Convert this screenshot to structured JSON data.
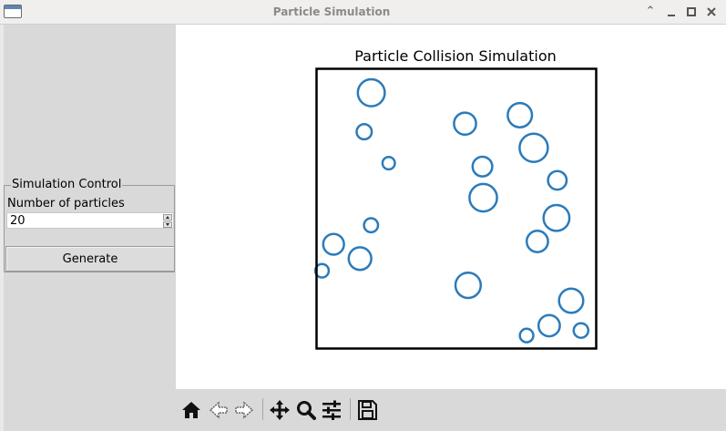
{
  "window": {
    "title": "Particle Simulation",
    "icons": [
      "app-window-icon",
      "chevron-up-icon",
      "minimize-icon",
      "maximize-icon",
      "close-icon"
    ]
  },
  "controls": {
    "group_title": "Simulation Control",
    "particles_label": "Number of particles",
    "particles_value": "20",
    "generate_label": "Generate"
  },
  "toolbar": {
    "icons": [
      "home-icon",
      "back-arrow-icon",
      "forward-arrow-icon",
      "pan-icon",
      "zoom-icon",
      "configure-subplots-icon",
      "save-icon"
    ]
  },
  "colors": {
    "particle": "#2b7bba",
    "frame": "#000000",
    "panel": "#d9d9d9"
  },
  "chart_data": {
    "type": "scatter",
    "title": "Particle Collision Simulation",
    "xlim": [
      0,
      1
    ],
    "ylim": [
      0,
      1
    ],
    "grid": false,
    "axes_visible": false,
    "points": [
      {
        "x": 0.196,
        "y": 0.913,
        "r": 0.048
      },
      {
        "x": 0.171,
        "y": 0.774,
        "r": 0.027
      },
      {
        "x": 0.258,
        "y": 0.662,
        "r": 0.022
      },
      {
        "x": 0.529,
        "y": 0.803,
        "r": 0.039
      },
      {
        "x": 0.724,
        "y": 0.833,
        "r": 0.043
      },
      {
        "x": 0.773,
        "y": 0.717,
        "r": 0.05
      },
      {
        "x": 0.591,
        "y": 0.65,
        "r": 0.035
      },
      {
        "x": 0.857,
        "y": 0.601,
        "r": 0.033
      },
      {
        "x": 0.594,
        "y": 0.539,
        "r": 0.049
      },
      {
        "x": 0.854,
        "y": 0.467,
        "r": 0.046
      },
      {
        "x": 0.195,
        "y": 0.441,
        "r": 0.025
      },
      {
        "x": 0.062,
        "y": 0.373,
        "r": 0.037
      },
      {
        "x": 0.786,
        "y": 0.383,
        "r": 0.038
      },
      {
        "x": 0.156,
        "y": 0.322,
        "r": 0.04
      },
      {
        "x": 0.021,
        "y": 0.279,
        "r": 0.024
      },
      {
        "x": 0.54,
        "y": 0.227,
        "r": 0.045
      },
      {
        "x": 0.906,
        "y": 0.172,
        "r": 0.043
      },
      {
        "x": 0.828,
        "y": 0.083,
        "r": 0.038
      },
      {
        "x": 0.941,
        "y": 0.066,
        "r": 0.026
      },
      {
        "x": 0.748,
        "y": 0.048,
        "r": 0.024
      }
    ]
  }
}
